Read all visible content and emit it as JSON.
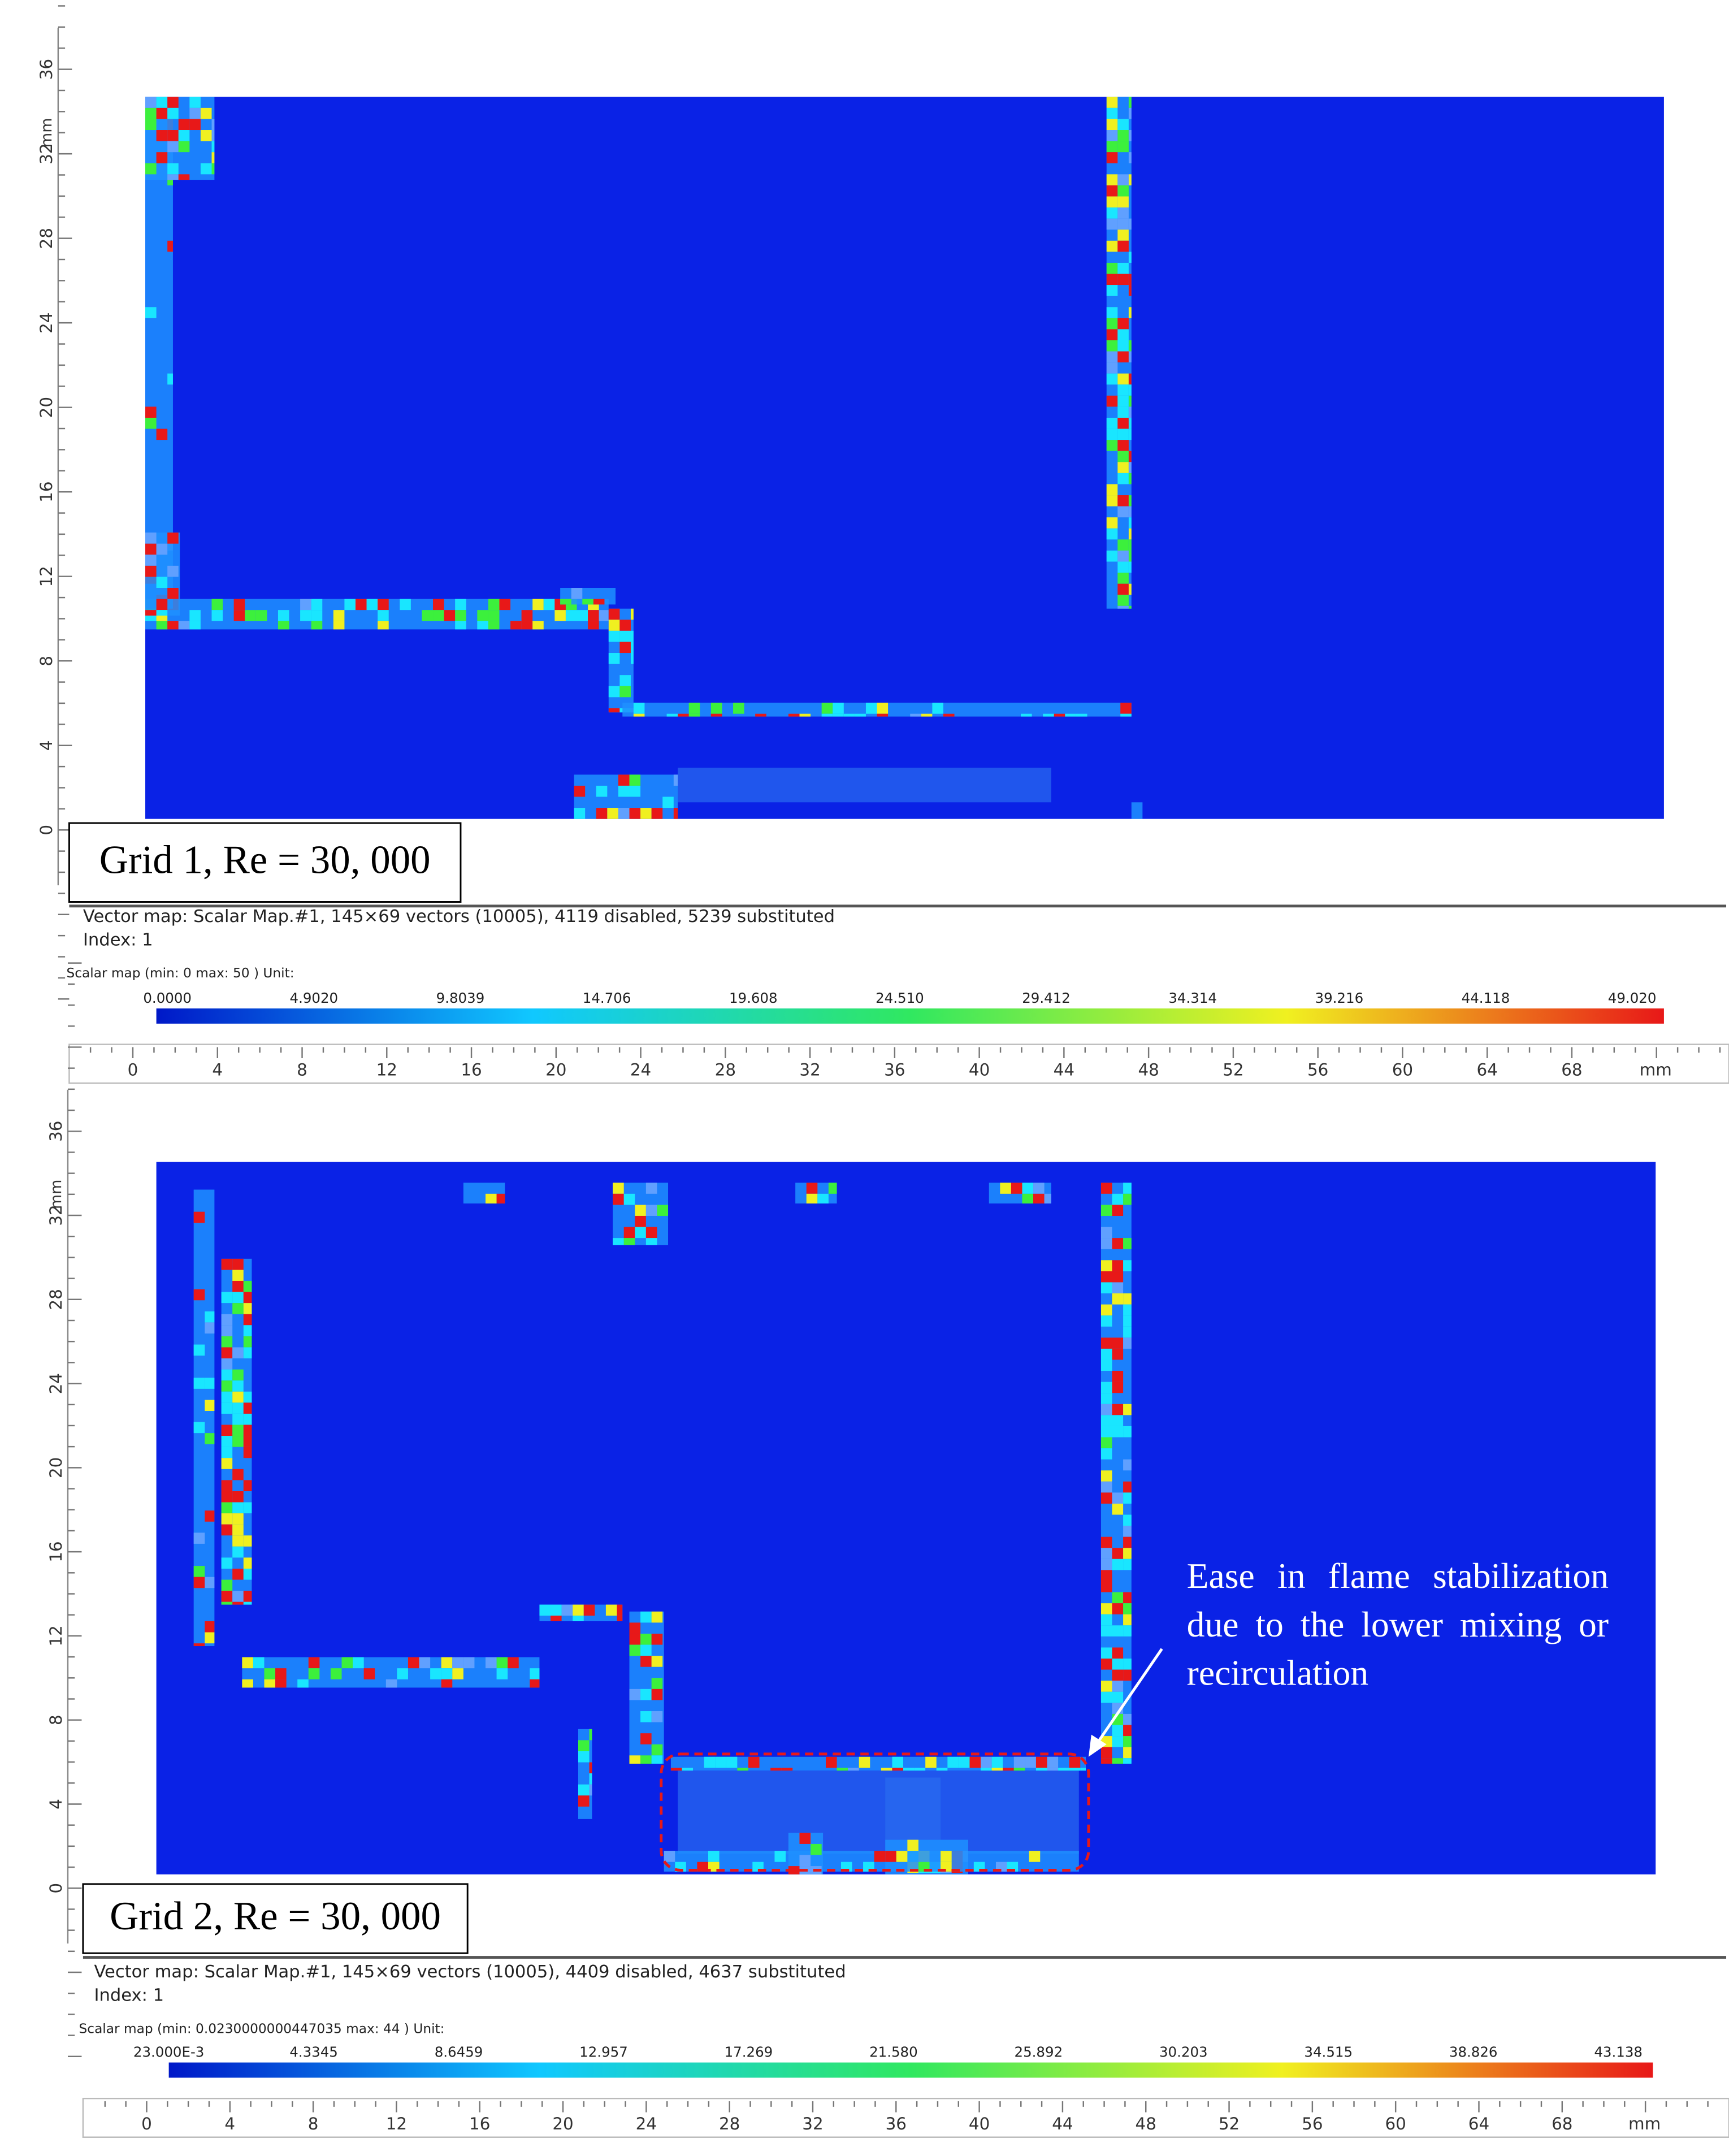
{
  "panels": [
    {
      "label": "Grid 1, Re = 30, 000",
      "vector_info": "Vector map: Scalar Map.#1, 145×69 vectors (10005), 4119 disabled, 5239 substituted",
      "index": "Index: 1",
      "scalar_info": "Scalar map (min: 0 max: 50 ) Unit:",
      "colorbar_labels": [
        "0.0000",
        "4.9020",
        "9.8039",
        "14.706",
        "19.608",
        "24.510",
        "29.412",
        "34.314",
        "39.216",
        "44.118",
        "49.020"
      ],
      "x_ticks": [
        "0",
        "4",
        "8",
        "12",
        "16",
        "20",
        "24",
        "28",
        "32",
        "36",
        "40",
        "44",
        "48",
        "52",
        "56",
        "60",
        "64",
        "68"
      ],
      "x_unit": "mm",
      "y_ticks": [
        "0",
        "4",
        "8",
        "12",
        "16",
        "20",
        "24",
        "28",
        "32",
        "36"
      ],
      "y_unit": "mm"
    },
    {
      "label": "Grid 2, Re = 30, 000",
      "vector_info": "Vector map: Scalar Map.#1, 145×69 vectors (10005), 4409 disabled, 4637 substituted",
      "index": "Index: 1",
      "scalar_info": "Scalar map (min: 0.0230000000447035 max: 44 ) Unit:",
      "colorbar_labels": [
        "23.000E-3",
        "4.3345",
        "8.6459",
        "12.957",
        "17.269",
        "21.580",
        "25.892",
        "30.203",
        "34.515",
        "38.826",
        "43.138"
      ],
      "x_ticks": [
        "0",
        "4",
        "8",
        "12",
        "16",
        "20",
        "24",
        "28",
        "32",
        "36",
        "40",
        "44",
        "48",
        "52",
        "56",
        "60",
        "64",
        "68"
      ],
      "x_unit": "mm",
      "y_ticks": [
        "0",
        "4",
        "8",
        "12",
        "16",
        "20",
        "24",
        "28",
        "32",
        "36"
      ],
      "y_unit": "mm",
      "annotation": "Ease in flame stabilization due to the lower mixing or recirculation"
    }
  ]
}
